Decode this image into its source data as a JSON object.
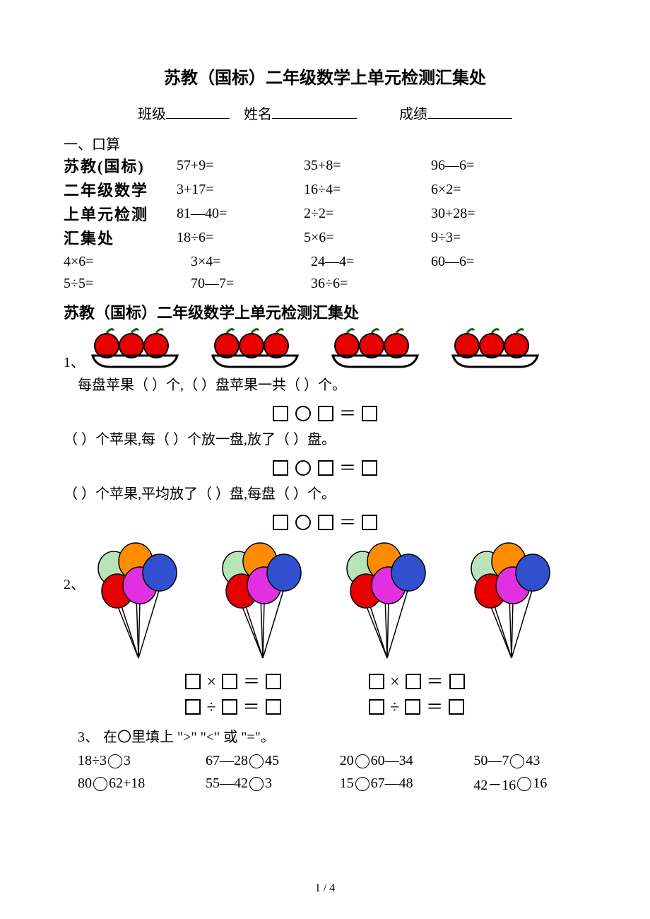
{
  "title": "苏教（国标）二年级数学上单元检测汇集处",
  "header": {
    "class_label": "班级",
    "name_label": "姓名",
    "score_label": "成绩"
  },
  "section1": {
    "heading": "一、口算",
    "left_block": [
      "苏教(国标)",
      "二年级数学",
      "上单元检测",
      "汇集处"
    ],
    "grid_main": [
      [
        "57+9=",
        "35+8=",
        "96―6="
      ],
      [
        "3+17=",
        "16÷4=",
        "6×2="
      ],
      [
        "81―40=",
        "2÷2=",
        "30+28="
      ],
      [
        "18÷6=",
        "5×6=",
        "9÷3="
      ]
    ],
    "grid_tail": [
      [
        "4×6=",
        "3×4=",
        "24―4=",
        "60―6="
      ],
      [
        "5÷5=",
        "70―7=",
        "36÷6=",
        ""
      ]
    ]
  },
  "section2": {
    "heading": "苏教（国标）二年级数学上单元检测汇集处",
    "q1": {
      "num": "1、",
      "line_a": "每盘苹果（   ）个,（   ）盘苹果一共（   ）个。",
      "line_b": "（   ）个苹果,每（   ）个放一盘,放了（   ）盘。",
      "line_c": "（   ）个苹果,平均放了（   ）盘,每盘（   ）个。"
    },
    "q2": {
      "num": "2、"
    },
    "q3": {
      "num": "3、",
      "intro": "在〇里填上 \">\" \"<\" 或 \"=\"。",
      "cells": [
        [
          "18÷3",
          "3"
        ],
        [
          "67―28",
          "45"
        ],
        [
          "20",
          "60―34"
        ],
        [
          "50―7",
          "43"
        ],
        [
          "80",
          "62+18"
        ],
        [
          "55―42",
          "3"
        ],
        [
          "15",
          "67―48"
        ],
        [
          "42－16",
          "16"
        ]
      ]
    }
  },
  "plate": {
    "apple_fill": "#e60000",
    "apple_stroke": "#000000",
    "stem_fill": "#006600",
    "tray_stroke": "#000000",
    "count": 4
  },
  "balloons": {
    "colors": [
      "#b9e3b9",
      "#ff8c00",
      "#e60000",
      "#e030e0",
      "#3050d0"
    ],
    "count": 4
  },
  "page_num": "1 / 4"
}
